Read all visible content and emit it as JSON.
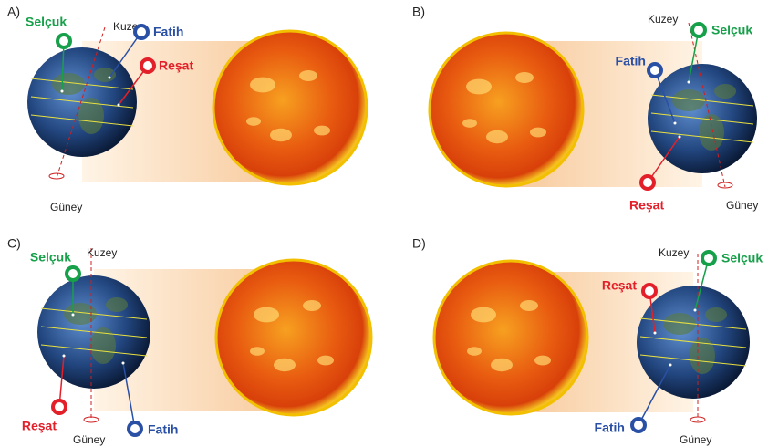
{
  "panels": [
    {
      "label": "A)",
      "north": "Kuzey",
      "south": "Güney",
      "selcuk": "Selçuk",
      "fatih": "Fatih",
      "resat": "Reşat"
    },
    {
      "label": "B)",
      "north": "Kuzey",
      "south": "Güney",
      "selcuk": "Selçuk",
      "fatih": "Fatih",
      "resat": "Reşat"
    },
    {
      "label": "C)",
      "north": "Kuzey",
      "south": "Güney",
      "selcuk": "Selçuk",
      "fatih": "Fatih",
      "resat": "Reşat"
    },
    {
      "label": "D)",
      "north": "Kuzey",
      "south": "Güney",
      "selcuk": "Selçuk",
      "fatih": "Fatih",
      "resat": "Reşat"
    }
  ]
}
